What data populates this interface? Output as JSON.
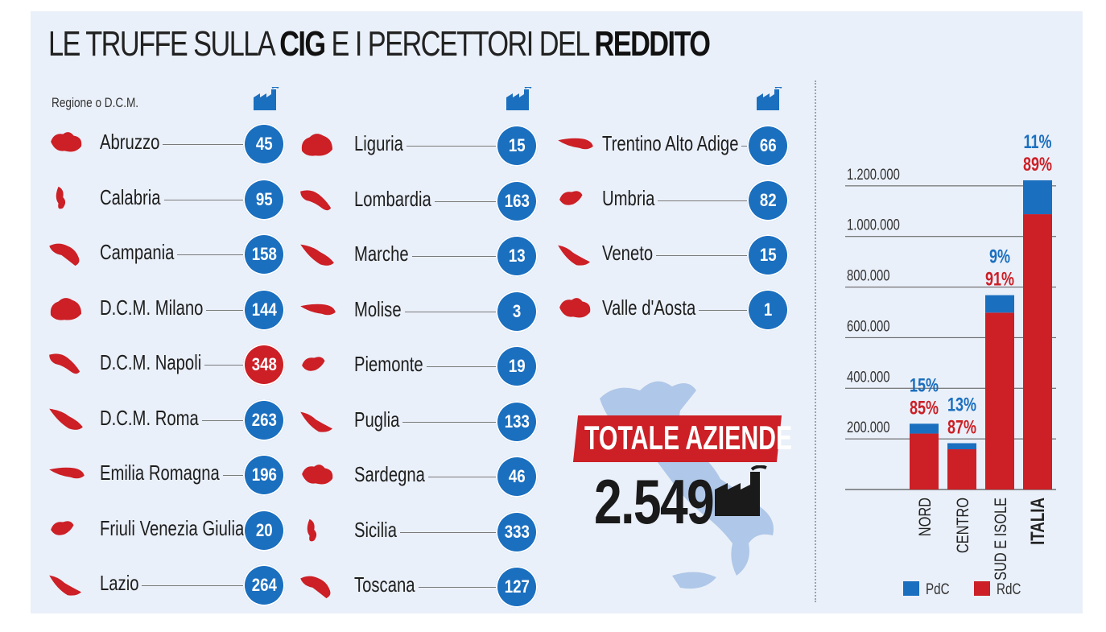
{
  "title": {
    "part1": "LE TRUFFE SULLA ",
    "part2": "CIG",
    "part3": " E I PERCETTORI DEL ",
    "part4": "REDDITO"
  },
  "region_header": "Regione o D.C.M.",
  "icons": {
    "factory": "factory-icon",
    "region": "region-map-icon",
    "italy": "italy-map-icon"
  },
  "colors": {
    "blue": "#1b6fbf",
    "red": "#cc1f26",
    "panel": "#eaf0f9"
  },
  "regions": {
    "col1": [
      {
        "name": "Abruzzo",
        "value": "45"
      },
      {
        "name": "Calabria",
        "value": "95"
      },
      {
        "name": "Campania",
        "value": "158"
      },
      {
        "name": "D.C.M. Milano",
        "value": "144"
      },
      {
        "name": "D.C.M. Napoli",
        "value": "348",
        "highlight": true
      },
      {
        "name": "D.C.M. Roma",
        "value": "263"
      },
      {
        "name": "Emilia Romagna",
        "value": "196"
      },
      {
        "name": "Friuli Venezia Giulia",
        "value": "20"
      },
      {
        "name": "Lazio",
        "value": "264"
      }
    ],
    "col2": [
      {
        "name": "Liguria",
        "value": "15"
      },
      {
        "name": "Lombardia",
        "value": "163"
      },
      {
        "name": "Marche",
        "value": "13"
      },
      {
        "name": "Molise",
        "value": "3"
      },
      {
        "name": "Piemonte",
        "value": "19"
      },
      {
        "name": "Puglia",
        "value": "133"
      },
      {
        "name": "Sardegna",
        "value": "46"
      },
      {
        "name": "Sicilia",
        "value": "333"
      },
      {
        "name": "Toscana",
        "value": "127"
      }
    ],
    "col3": [
      {
        "name": "Trentino Alto Adige",
        "value": "66"
      },
      {
        "name": "Umbria",
        "value": "82"
      },
      {
        "name": "Veneto",
        "value": "15"
      },
      {
        "name": "Valle d'Aosta",
        "value": "1"
      }
    ]
  },
  "totale": {
    "label": "TOTALE AZIENDE",
    "value": "2.549"
  },
  "chart_data": {
    "type": "bar",
    "stacked": true,
    "categories": [
      "NORD",
      "CENTRO",
      "SUD E ISOLE",
      "ITALIA"
    ],
    "series": [
      {
        "name": "RdC",
        "color": "#cc1f26",
        "values": [
          221000,
          159000,
          699000,
          1088000
        ]
      },
      {
        "name": "PdC",
        "color": "#1b6fbf",
        "values": [
          39000,
          24000,
          69000,
          134000
        ]
      }
    ],
    "pct_labels": [
      {
        "pdc": "15%",
        "rdc": "85%"
      },
      {
        "pdc": "13%",
        "rdc": "87%"
      },
      {
        "pdc": "9%",
        "rdc": "91%"
      },
      {
        "pdc": "11%",
        "rdc": "89%"
      }
    ],
    "yticks": [
      200000,
      400000,
      600000,
      800000,
      1000000,
      1200000
    ],
    "ytick_labels": [
      "200.000",
      "400.000",
      "600.000",
      "800.000",
      "1.000.000",
      "1.200.000"
    ],
    "ylim": [
      0,
      1400000
    ],
    "legend": [
      {
        "name": "PdC",
        "color": "#1b6fbf"
      },
      {
        "name": "RdC",
        "color": "#cc1f26"
      }
    ],
    "legend_position": "bottom",
    "grid": false
  }
}
